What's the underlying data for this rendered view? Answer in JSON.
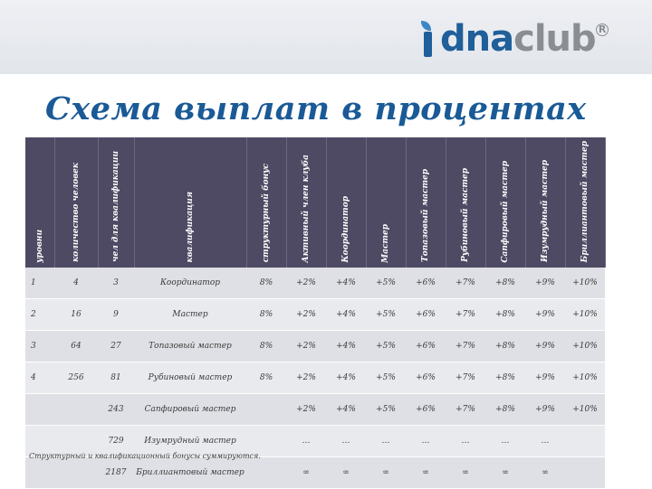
{
  "logo": {
    "part1": "dna",
    "part2": "club",
    "reg": "R"
  },
  "title": {
    "main": "Схема выплат",
    "rest": " в процентах"
  },
  "headers": [
    "уровни",
    "количество человек",
    "чел для квалификации",
    "квалификация",
    "структурный бонус",
    "Активный член клуба",
    "Координатор",
    "Мастер",
    "Топазовый мастер",
    "Рубиновый мастер",
    "Сапфировый мастер",
    "Изумрудный мастер",
    "Бриллиантовый мастер"
  ],
  "rows": [
    [
      "1",
      "4",
      "3",
      "Координатор",
      "8%",
      "+2%",
      "+4%",
      "+5%",
      "+6%",
      "+7%",
      "+8%",
      "+9%",
      "+10%"
    ],
    [
      "2",
      "16",
      "9",
      "Мастер",
      "8%",
      "+2%",
      "+4%",
      "+5%",
      "+6%",
      "+7%",
      "+8%",
      "+9%",
      "+10%"
    ],
    [
      "3",
      "64",
      "27",
      "Топазовый мастер",
      "8%",
      "+2%",
      "+4%",
      "+5%",
      "+6%",
      "+7%",
      "+8%",
      "+9%",
      "+10%"
    ],
    [
      "4",
      "256",
      "81",
      "Рубиновый мастер",
      "8%",
      "+2%",
      "+4%",
      "+5%",
      "+6%",
      "+7%",
      "+8%",
      "+9%",
      "+10%"
    ],
    [
      "",
      "",
      "243",
      "Сапфировый мастер",
      "",
      "+2%",
      "+4%",
      "+5%",
      "+6%",
      "+7%",
      "+8%",
      "+9%",
      "+10%"
    ],
    [
      "",
      "",
      "729",
      "Изумрудный мастер",
      "",
      "…",
      "…",
      "…",
      "…",
      "…",
      "…",
      "…",
      ""
    ],
    [
      "",
      "",
      "2187",
      "Бриллиантовый мастер",
      "",
      "∞",
      "∞",
      "∞",
      "∞",
      "∞",
      "∞",
      "∞",
      ""
    ]
  ],
  "footnote": "Структурный и квалификационный бонусы суммируются."
}
